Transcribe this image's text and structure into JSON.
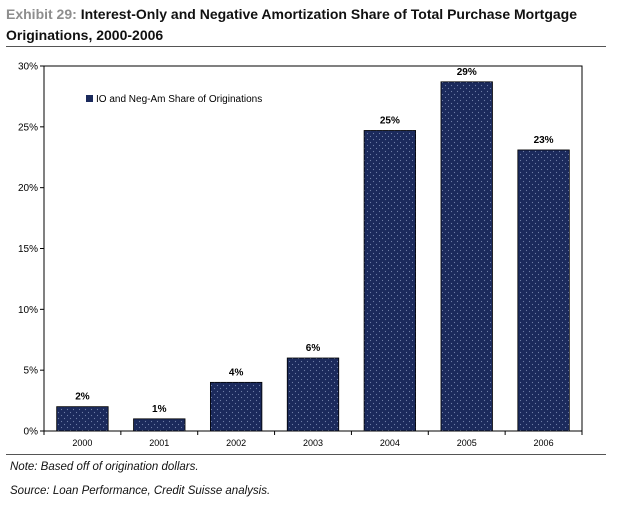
{
  "header": {
    "exhibit": "Exhibit 29:",
    "title_line1": "Interest-Only and Negative Amortization Share of Total Purchase Mortgage",
    "title_line2": "Originations, 2000-2006"
  },
  "footer": {
    "note": "Note: Based off of origination dollars.",
    "source": "Source: Loan Performance, Credit Suisse analysis."
  },
  "colors": {
    "bar": "#1b2a5c",
    "dots": "#6f7fa8",
    "axis": "#000000"
  },
  "chart_data": {
    "type": "bar",
    "categories": [
      "2000",
      "2001",
      "2002",
      "2003",
      "2004",
      "2005",
      "2006"
    ],
    "series": [
      {
        "name": "IO and Neg-Am Share of Originations",
        "values": [
          2,
          1,
          4,
          6,
          24.7,
          28.7,
          23.1
        ],
        "labels": [
          "2%",
          "1%",
          "4%",
          "6%",
          "25%",
          "29%",
          "23%"
        ]
      }
    ],
    "ylim": [
      0,
      30
    ],
    "yticks": [
      0,
      5,
      10,
      15,
      20,
      25,
      30
    ],
    "ytick_labels": [
      "0%",
      "5%",
      "10%",
      "15%",
      "20%",
      "25%",
      "30%"
    ],
    "grid": false,
    "legend_position": "top-left"
  }
}
